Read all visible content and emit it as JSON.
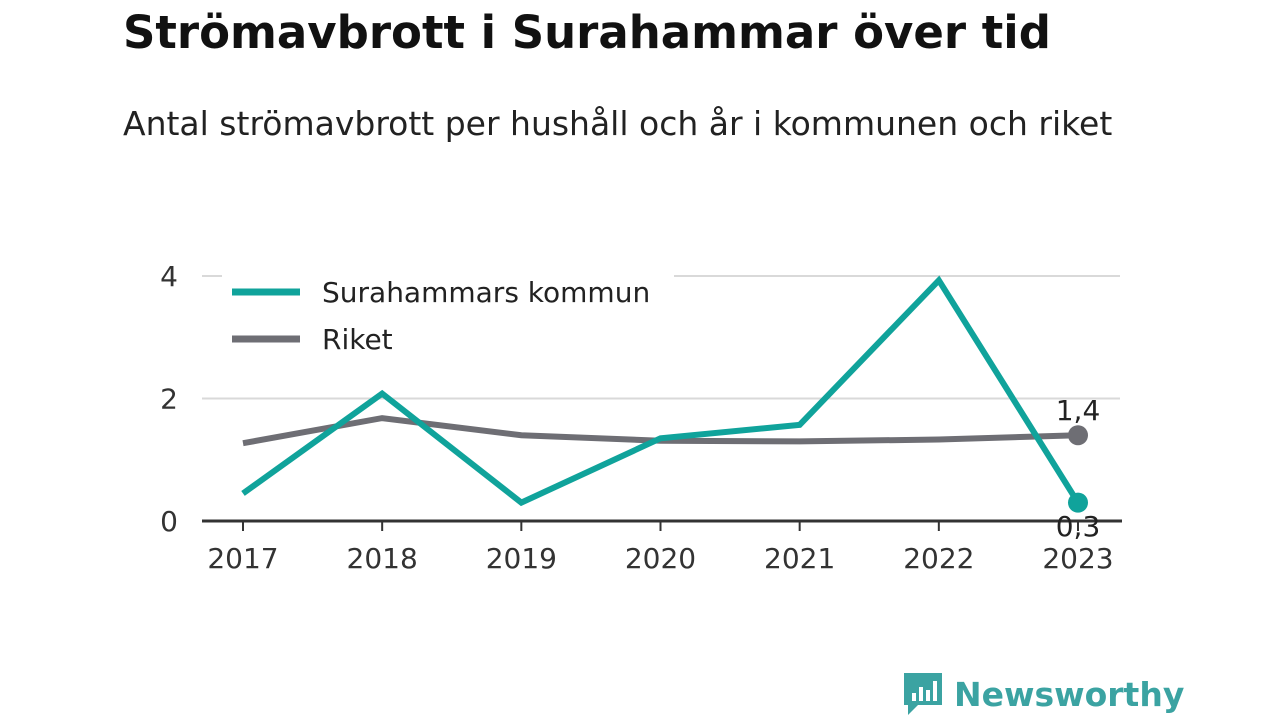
{
  "colors": {
    "surahammar": "#10a39b",
    "riket": "#6e6e74",
    "brand": "#3ba3a2"
  },
  "chart_data": {
    "type": "line",
    "title": "Strömavbrott i Surahammar över tid",
    "subtitle": "Antal strömavbrott per hushåll och år i kommunen och riket",
    "x": [
      "2017",
      "2018",
      "2019",
      "2020",
      "2021",
      "2022",
      "2023"
    ],
    "y_ticks": [
      "0",
      "2",
      "4"
    ],
    "ylim": [
      0,
      4
    ],
    "grid": true,
    "legend_position": "top-left",
    "series": [
      {
        "name": "Surahammars kommun",
        "values": [
          0.45,
          2.08,
          0.3,
          1.35,
          1.57,
          3.93,
          0.3
        ]
      },
      {
        "name": "Riket",
        "values": [
          1.27,
          1.68,
          1.4,
          1.31,
          1.3,
          1.33,
          1.4
        ]
      }
    ],
    "end_labels": {
      "surahammar": "0,3",
      "riket": "1,4"
    }
  },
  "brand": {
    "name": "Newsworthy",
    "icon": "newsworthy-logo-icon"
  }
}
